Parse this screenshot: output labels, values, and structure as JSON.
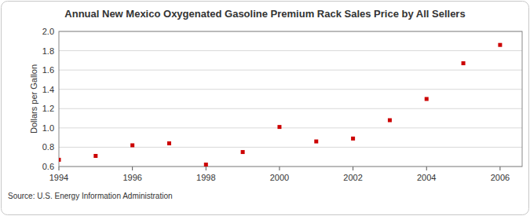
{
  "chart_data": {
    "type": "scatter",
    "title": "Annual New Mexico Oxygenated Gasoline Premium Rack Sales Price by All Sellers",
    "y_label": "Dollars per Gallon",
    "source": "Source: U.S. Energy Information Administration",
    "x": [
      1994,
      1995,
      1996,
      1997,
      1998,
      1999,
      2000,
      2001,
      2002,
      2003,
      2004,
      2005,
      2006
    ],
    "values": [
      0.67,
      0.71,
      0.82,
      0.84,
      0.62,
      0.75,
      1.01,
      0.86,
      0.89,
      1.08,
      1.3,
      1.67,
      1.86
    ],
    "color": "#cc0000",
    "marker": "square",
    "xlim": [
      1994,
      2006.6
    ],
    "xticks": [
      1994,
      1996,
      1998,
      2000,
      2002,
      2004,
      2006
    ],
    "ylim": [
      0.6,
      2.0
    ],
    "yticks": [
      0.6,
      0.8,
      {
        "value": 1.0,
        "label": "1.0"
      },
      1.2,
      1.4,
      1.6,
      1.8,
      {
        "value": 2.0,
        "label": "2.0"
      }
    ],
    "grid": true
  }
}
